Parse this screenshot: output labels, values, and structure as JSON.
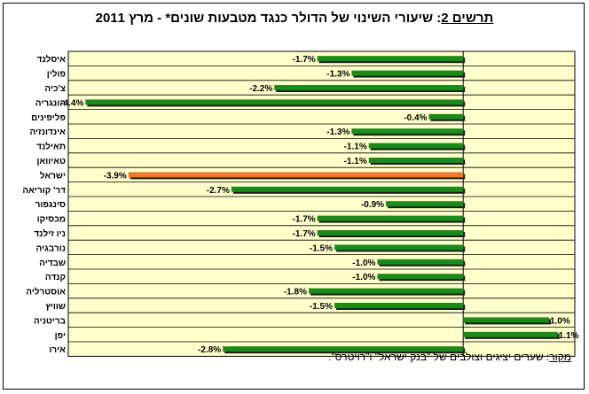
{
  "title": {
    "lead": "תרשים 2",
    "rest": ": שיעורי השינוי של הדולר כנגד מטבעות שונים* - מרץ 2011"
  },
  "source": {
    "lead": "מקור",
    "rest": ": שערים יציגים וצולבים של \"בנק ישראל\" ו\"רויטרס\"."
  },
  "colors": {
    "plot_bg": "#ffffcc",
    "bar": "#1a8a1a",
    "bar_highlight": "#f07830",
    "bar_shadow": "#1c1c1c",
    "grid": "#000000"
  },
  "chart_data": {
    "type": "bar",
    "orientation": "horizontal",
    "categories": [
      "איסלנד",
      "פולין",
      "צ'כיה",
      "הונגריה",
      "פליפינים",
      "אינדונזיה",
      "תאילנד",
      "טאיוואן",
      "ישראל",
      "דר' קוריאה",
      "סינגפור",
      "מכסיקו",
      "ניו זילנד",
      "נורבגיה",
      "שבדיה",
      "קנדה",
      "אוסטרליה",
      "שוויץ",
      "בריטניה",
      "יפן",
      "אירו"
    ],
    "values": [
      -1.7,
      -1.3,
      -2.2,
      -4.4,
      -0.4,
      -1.3,
      -1.1,
      -1.1,
      -3.9,
      -2.7,
      -0.9,
      -1.7,
      -1.7,
      -1.5,
      -1.0,
      -1.0,
      -1.8,
      -1.5,
      1.0,
      1.1,
      -2.8
    ],
    "labels": [
      "-1.7%",
      "-1.3%",
      "-2.2%",
      "-4.4%",
      "-0.4%",
      "-1.3%",
      "-1.1%",
      "-1.1%",
      "-3.9%",
      "-2.7%",
      "-0.9%",
      "-1.7%",
      "-1.7%",
      "-1.5%",
      "-1.0%",
      "-1.0%",
      "-1.8%",
      "-1.5%",
      "1.0%",
      "1.1%",
      "-2.8%"
    ],
    "highlight": "ישראל",
    "xlim": [
      -4.6,
      1.3
    ],
    "grid": true,
    "legend": "none"
  }
}
